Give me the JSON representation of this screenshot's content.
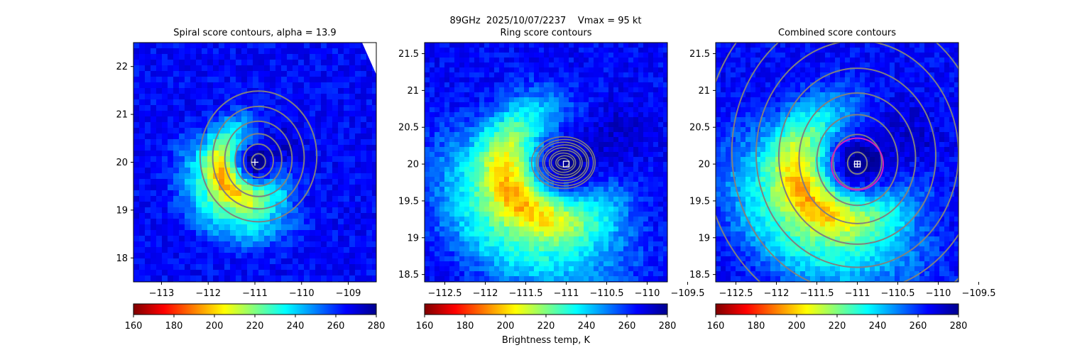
{
  "suptitle": "89GHz  2025/10/07/2237    Vmax = 95 kt",
  "colorbar_label": "Brightness temp, K",
  "colormap": [
    "#7f0000",
    "#ff0000",
    "#ff8000",
    "#ffff00",
    "#80ff80",
    "#00ffff",
    "#0080ff",
    "#0000ff",
    "#00008f"
  ],
  "contour_color": "#808080",
  "marker_color": "#ffffff",
  "circle_color": "#d020c0",
  "chart_data": [
    {
      "type": "heatmap",
      "title": "Spiral score contours, alpha = 13.9",
      "xlim": [
        -113.6,
        -108.4
      ],
      "ylim": [
        17.5,
        22.5
      ],
      "xticks": [
        -113,
        -112,
        -111,
        -110,
        -109
      ],
      "yticks": [
        18,
        19,
        20,
        21,
        22
      ],
      "center": [
        -111.0,
        20.0
      ],
      "marker": "plus",
      "colorbar": {
        "range": [
          160,
          280
        ],
        "ticks": [
          160,
          180,
          200,
          220,
          240,
          260,
          280
        ]
      }
    },
    {
      "type": "heatmap",
      "title": "Ring score contours",
      "xlim": [
        -112.75,
        -109.75
      ],
      "ylim": [
        18.4,
        21.65
      ],
      "xticks": [
        -112.5,
        -112.0,
        -111.5,
        -111.0,
        -110.5,
        -110.0,
        -109.5
      ],
      "yticks": [
        18.5,
        19.0,
        19.5,
        20.0,
        20.5,
        21.0,
        21.5
      ],
      "center": [
        -111.0,
        20.0
      ],
      "marker": "square",
      "colorbar": {
        "range": [
          160,
          280
        ],
        "ticks": [
          160,
          180,
          200,
          220,
          240,
          260,
          280
        ]
      }
    },
    {
      "type": "heatmap",
      "title": "Combined score contours",
      "xlim": [
        -112.75,
        -109.75
      ],
      "ylim": [
        18.4,
        21.65
      ],
      "xticks": [
        -112.5,
        -112.0,
        -111.5,
        -111.0,
        -110.5,
        -110.0,
        -109.5
      ],
      "yticks": [
        18.5,
        19.0,
        19.5,
        20.0,
        20.5,
        21.0,
        21.5
      ],
      "center": [
        -111.0,
        20.0
      ],
      "marker": "square-plus",
      "circle_radius_deg": 0.32,
      "colorbar": {
        "range": [
          160,
          280
        ],
        "ticks": [
          160,
          180,
          200,
          220,
          240,
          260,
          280
        ]
      }
    }
  ]
}
